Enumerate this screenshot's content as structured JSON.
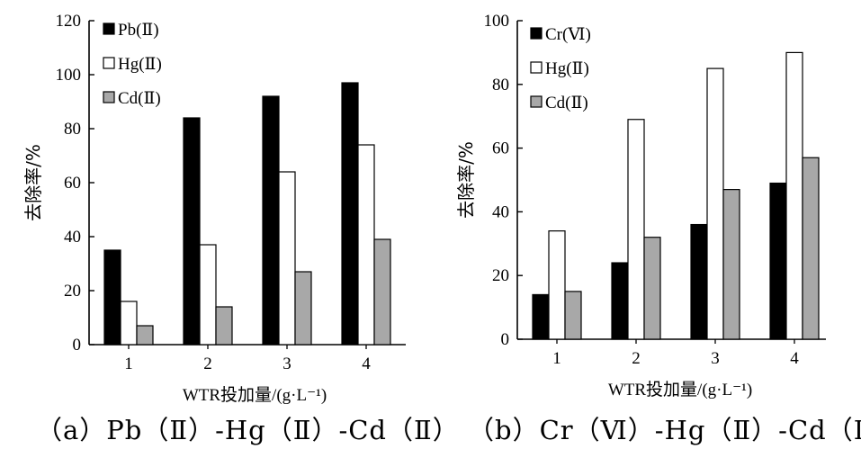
{
  "chart_data": [
    {
      "type": "bar",
      "categories": [
        "1",
        "2",
        "3",
        "4"
      ],
      "series": [
        {
          "name": "Pb(Ⅱ)",
          "values": [
            35,
            84,
            92,
            97
          ],
          "color": "#000000"
        },
        {
          "name": "Hg(Ⅱ)",
          "values": [
            16,
            37,
            64,
            74
          ],
          "color": "#ffffff"
        },
        {
          "name": "Cd(Ⅱ)",
          "values": [
            7,
            14,
            27,
            39
          ],
          "color": "#a8a8a8"
        }
      ],
      "xlabel": "WTR投加量/(g·L⁻¹)",
      "ylabel": "去除率/%",
      "ylim": [
        0,
        120
      ],
      "yticks": [
        "0",
        "20",
        "40",
        "60",
        "80",
        "100",
        "120"
      ],
      "legend": "top-left",
      "grid": false,
      "caption": "（a）Pb（Ⅱ）-Hg（Ⅱ）-Cd（Ⅱ）"
    },
    {
      "type": "bar",
      "categories": [
        "1",
        "2",
        "3",
        "4"
      ],
      "series": [
        {
          "name": "Cr(Ⅵ)",
          "values": [
            14,
            24,
            36,
            49
          ],
          "color": "#000000"
        },
        {
          "name": "Hg(Ⅱ)",
          "values": [
            34,
            69,
            85,
            90
          ],
          "color": "#ffffff"
        },
        {
          "name": "Cd(Ⅱ)",
          "values": [
            15,
            32,
            47,
            57
          ],
          "color": "#a8a8a8"
        }
      ],
      "xlabel": "WTR投加量/(g·L⁻¹)",
      "ylabel": "去除率/%",
      "ylim": [
        0,
        100
      ],
      "yticks": [
        "0",
        "20",
        "40",
        "60",
        "80",
        "100"
      ],
      "legend": "top-left",
      "grid": false,
      "caption": "（b）Cr（Ⅵ）-Hg（Ⅱ）-Cd（Ⅱ）"
    }
  ]
}
